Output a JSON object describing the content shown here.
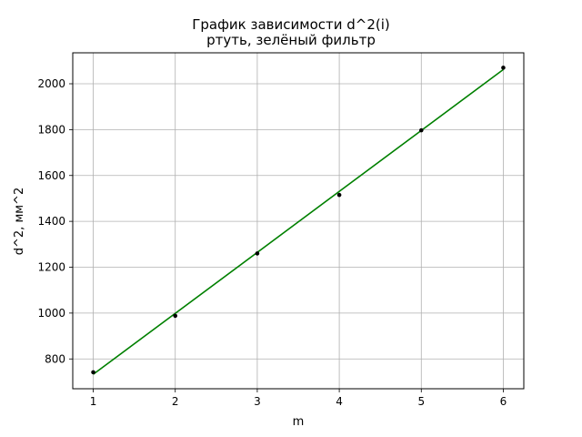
{
  "chart_data": {
    "type": "scatter",
    "title": "График зависимости d^2(i)",
    "subtitle": "ртуть, зелёный фильтр",
    "xlabel": "m",
    "ylabel": "d^2, мм^2",
    "xlim": [
      0.75,
      6.25
    ],
    "ylim": [
      670,
      2135
    ],
    "xticks": [
      1,
      2,
      3,
      4,
      5,
      6
    ],
    "yticks": [
      800,
      1000,
      1200,
      1400,
      1600,
      1800,
      2000
    ],
    "grid": true,
    "series": [
      {
        "kind": "points",
        "color": "#000000",
        "x": [
          1,
          2,
          3,
          4,
          5,
          6
        ],
        "y": [
          742,
          988,
          1260,
          1515,
          1797,
          2070
        ]
      },
      {
        "kind": "fit-line",
        "color": "#008000",
        "x": [
          1,
          6
        ],
        "y": [
          733,
          2062
        ]
      }
    ]
  }
}
